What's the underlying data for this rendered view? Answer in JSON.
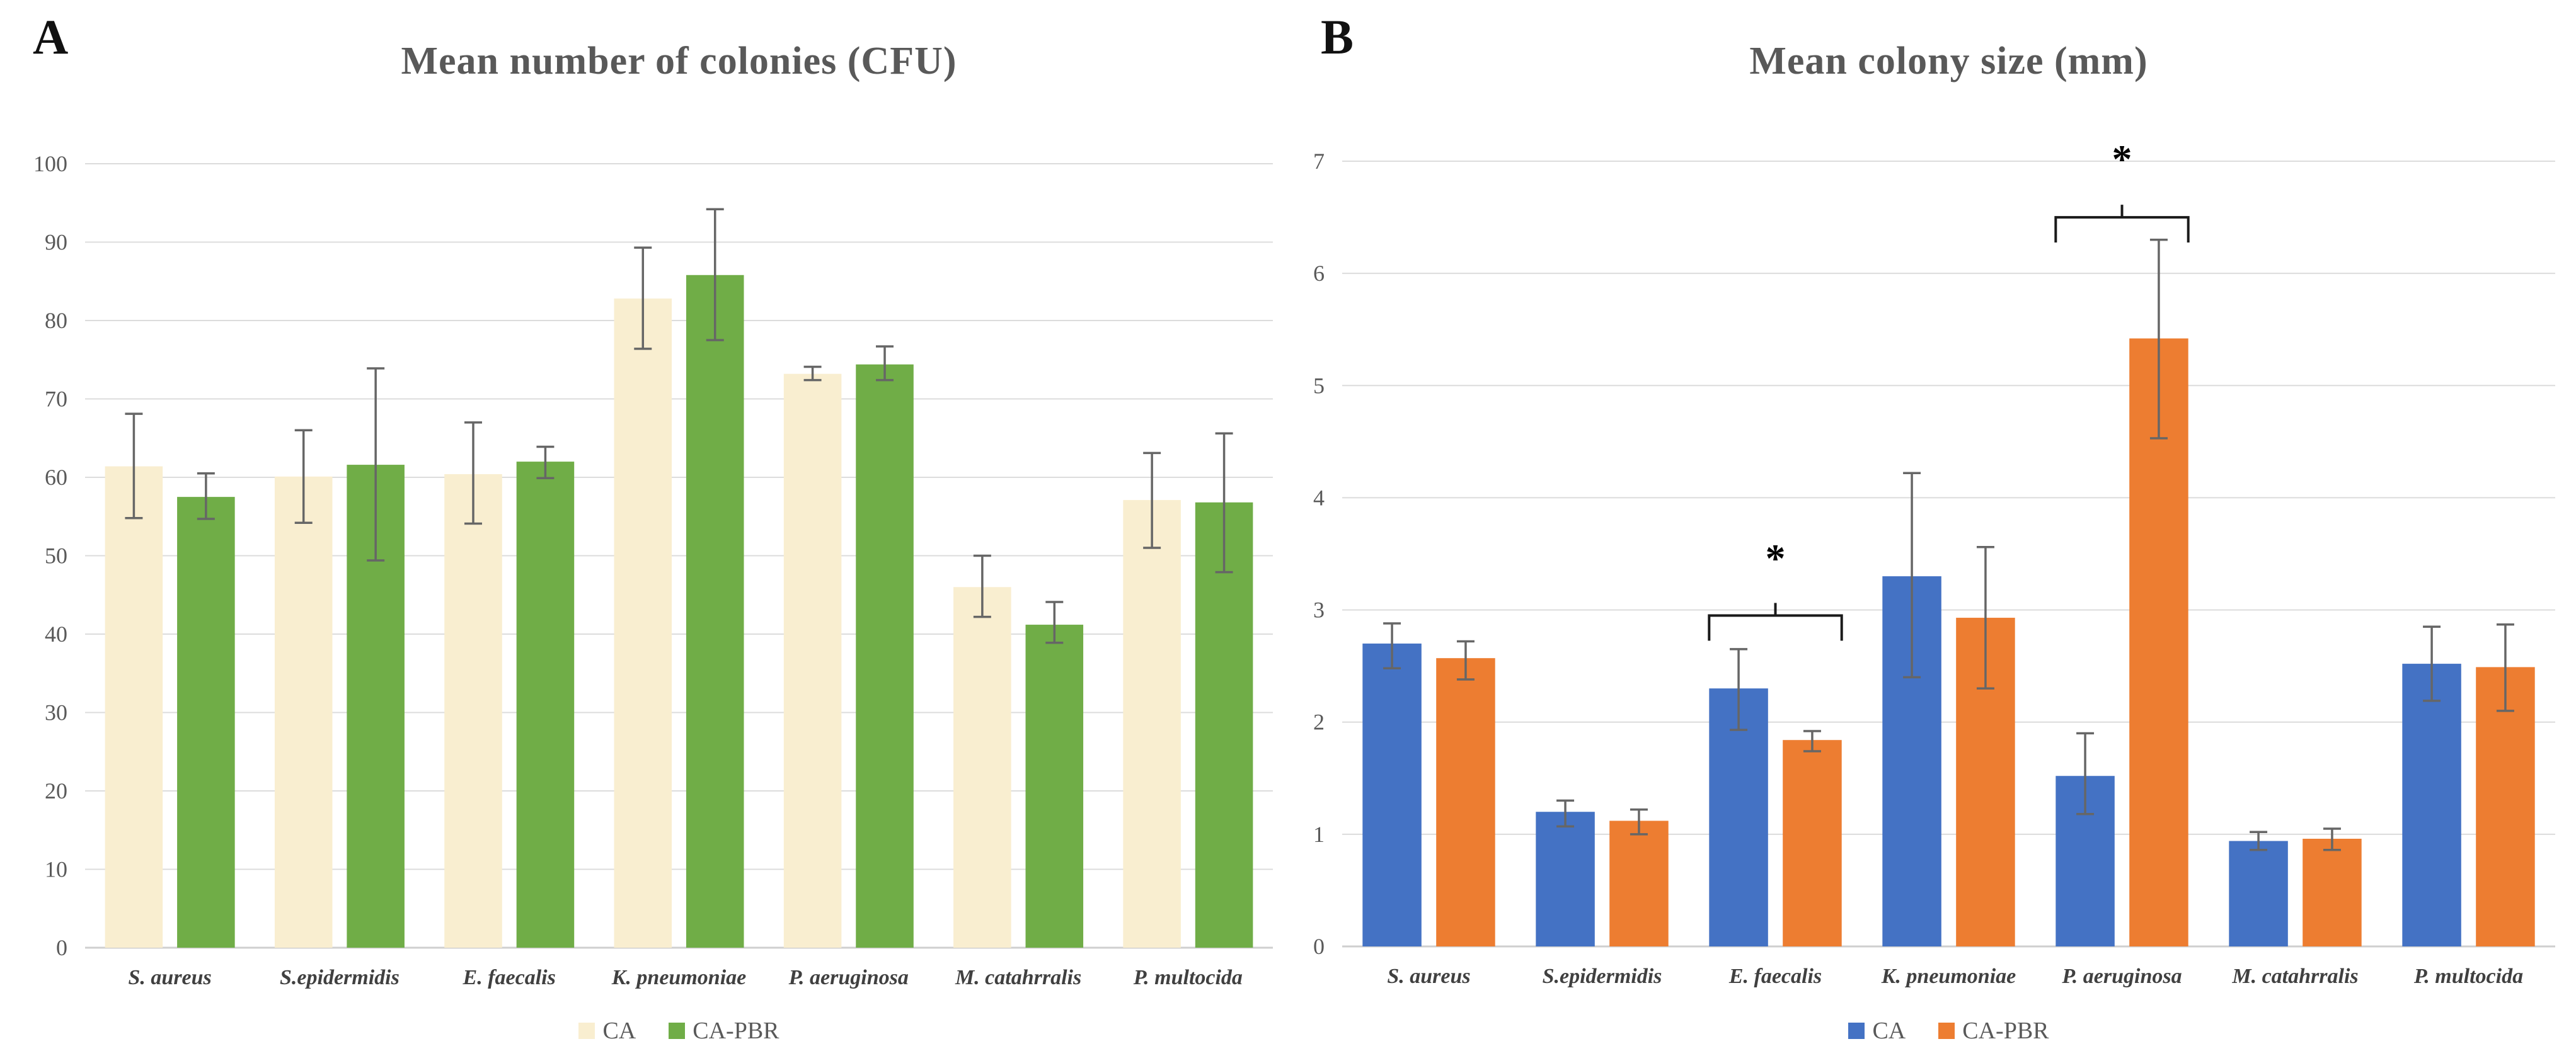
{
  "figure": {
    "background": "#ffffff",
    "gridline_color": "#dcdcdc",
    "axis_line_color": "#cfcfcf",
    "error_bar_color": "#666666",
    "title_color": "#595959"
  },
  "chart_data": [
    {
      "type": "bar",
      "panel_letter": "A",
      "title": "Mean number of colonies (CFU)",
      "xlabel": "",
      "ylabel": "",
      "ylim": [
        0,
        100
      ],
      "ytick_step": 10,
      "ytick_labels": [
        "0",
        "10",
        "20",
        "30",
        "40",
        "50",
        "60",
        "70",
        "80",
        "90",
        "100"
      ],
      "grid": true,
      "legend_position": "bottom",
      "categories": [
        "S. aureus",
        "S.epidermidis",
        "E. faecalis",
        "K. pneumoniae",
        "P. aeruginosa",
        "M. catahrralis",
        "P. multocida"
      ],
      "series": [
        {
          "name": "CA",
          "color": "#f9eed0",
          "values": [
            61.4,
            60.1,
            60.4,
            82.8,
            73.2,
            46.0,
            57.1
          ],
          "err_low": [
            54.8,
            54.2,
            54.1,
            76.4,
            72.4,
            42.2,
            51.0
          ],
          "err_high": [
            68.1,
            66.0,
            67.0,
            89.3,
            74.1,
            50.0,
            63.1
          ]
        },
        {
          "name": "CA-PBR",
          "color": "#70ad47",
          "values": [
            57.5,
            61.6,
            62.0,
            85.8,
            74.4,
            41.2,
            56.8
          ],
          "err_low": [
            54.7,
            49.4,
            59.9,
            77.5,
            72.4,
            38.9,
            47.9
          ],
          "err_high": [
            60.5,
            73.9,
            63.9,
            94.2,
            76.7,
            44.1,
            65.6
          ]
        }
      ],
      "annotations": []
    },
    {
      "type": "bar",
      "panel_letter": "B",
      "title": "Mean colony size (mm)",
      "xlabel": "",
      "ylabel": "",
      "ylim": [
        0,
        7
      ],
      "ytick_step": 1,
      "ytick_labels": [
        "0",
        "1",
        "2",
        "3",
        "4",
        "5",
        "6",
        "7"
      ],
      "grid": true,
      "legend_position": "bottom",
      "categories": [
        "S. aureus",
        "S.epidermidis",
        "E. faecalis",
        "K. pneumoniae",
        "P. aeruginosa",
        "M. catahrralis",
        "P. multocida"
      ],
      "series": [
        {
          "name": "CA",
          "color": "#4472c4",
          "values": [
            2.7,
            1.2,
            2.3,
            3.3,
            1.52,
            0.94,
            2.52
          ],
          "err_low": [
            2.48,
            1.07,
            1.93,
            2.4,
            1.18,
            0.86,
            2.19
          ],
          "err_high": [
            2.88,
            1.3,
            2.65,
            4.22,
            1.9,
            1.02,
            2.85
          ]
        },
        {
          "name": "CA-PBR",
          "color": "#ed7d31",
          "values": [
            2.57,
            1.12,
            1.84,
            2.93,
            5.42,
            0.96,
            2.49
          ],
          "err_low": [
            2.38,
            1.0,
            1.74,
            2.3,
            4.53,
            0.86,
            2.1
          ],
          "err_high": [
            2.72,
            1.22,
            1.92,
            3.56,
            6.3,
            1.05,
            2.87
          ]
        }
      ],
      "annotations": [
        {
          "type": "sig_bracket",
          "category": "E. faecalis",
          "label": "*",
          "bracket_y": 2.95,
          "label_y": 3.34
        },
        {
          "type": "sig_bracket",
          "category": "P. aeruginosa",
          "label": "*",
          "bracket_y": 6.5,
          "label_y": 6.9
        }
      ]
    }
  ]
}
